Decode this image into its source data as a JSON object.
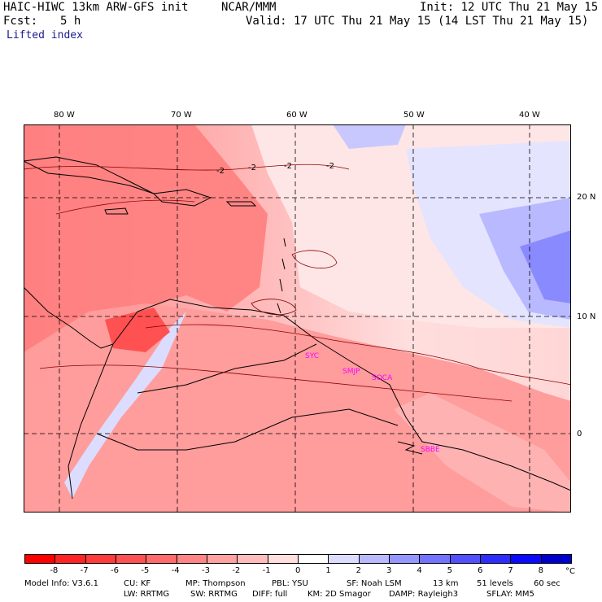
{
  "header": {
    "model": "HAIC-HIWC 13km ARW-GFS init",
    "org": "NCAR/MMM",
    "init": "Init: 12 UTC Thu 21 May 15",
    "fcst_label": "Fcst:",
    "fcst_value": "5 h",
    "valid": "Valid: 17 UTC Thu 21 May 15 (14 LST Thu 21 May 15)",
    "field": "Lifted index"
  },
  "map": {
    "lon_labels": [
      "80 W",
      "70 W",
      "60 W",
      "50 W",
      "40 W"
    ],
    "lat_labels": [
      "20 N",
      "10 N",
      "0"
    ],
    "contour_labels": [
      "-2",
      "-2",
      "-2",
      "-2"
    ],
    "stations": [
      "SYC",
      "SMJP",
      "SOCA",
      "SBBE"
    ]
  },
  "colorbar": {
    "ticks": [
      "-8",
      "-7",
      "-6",
      "-5",
      "-4",
      "-3",
      "-2",
      "-1",
      "0",
      "1",
      "2",
      "3",
      "4",
      "5",
      "6",
      "7",
      "8"
    ],
    "unit": "°C",
    "colors": [
      "#ff0000",
      "#ff2424",
      "#ff3b3b",
      "#ff5151",
      "#ff6b6b",
      "#ff8585",
      "#ffa1a1",
      "#ffbcbc",
      "#ffdede",
      "#ffffff",
      "#dcdcff",
      "#b9b9ff",
      "#9696ff",
      "#7373ff",
      "#5050ff",
      "#2d2dff",
      "#0a0aff",
      "#0000cc"
    ]
  },
  "info": {
    "line1": [
      "Model Info: V3.6.1",
      "CU: KF",
      "MP: Thompson",
      "PBL: YSU",
      "SF: Noah LSM",
      "13 km",
      "51 levels",
      "60 sec"
    ],
    "line2": [
      "LW: RRTMG",
      "SW: RRTMG",
      "DIFF: full",
      "KM: 2D Smagor",
      "DAMP: Rayleigh3",
      "SFLAY: MM5"
    ]
  }
}
